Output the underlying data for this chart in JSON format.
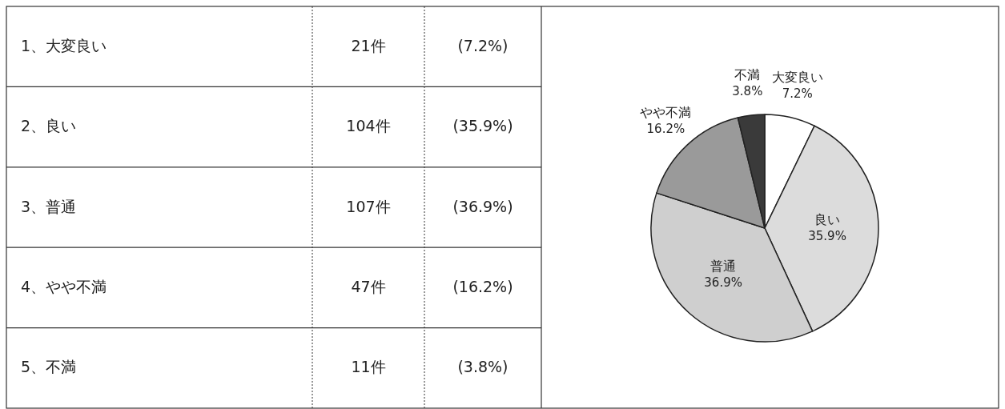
{
  "chart_data": {
    "type": "pie",
    "categories": [
      "大変良い",
      "良い",
      "普通",
      "やや不満",
      "不満"
    ],
    "values": [
      7.2,
      35.9,
      36.9,
      16.2,
      3.8
    ],
    "colors": [
      "#ffffff",
      "#dcdcdc",
      "#cfcfcf",
      "#9a9a9a",
      "#3a3a3a"
    ],
    "value_labels": [
      "7.2%",
      "35.9%",
      "36.9%",
      "16.2%",
      "3.8%"
    ],
    "annotations": [
      "1、大変良い",
      "21件",
      "(7.2%)",
      "2、良い",
      "104件",
      "(35.9%)",
      "3、普通",
      "107件",
      "(36.9%)",
      "4、やや不満",
      "47件",
      "(16.2%)",
      "5、不満",
      "11件",
      "(3.8%)"
    ]
  }
}
